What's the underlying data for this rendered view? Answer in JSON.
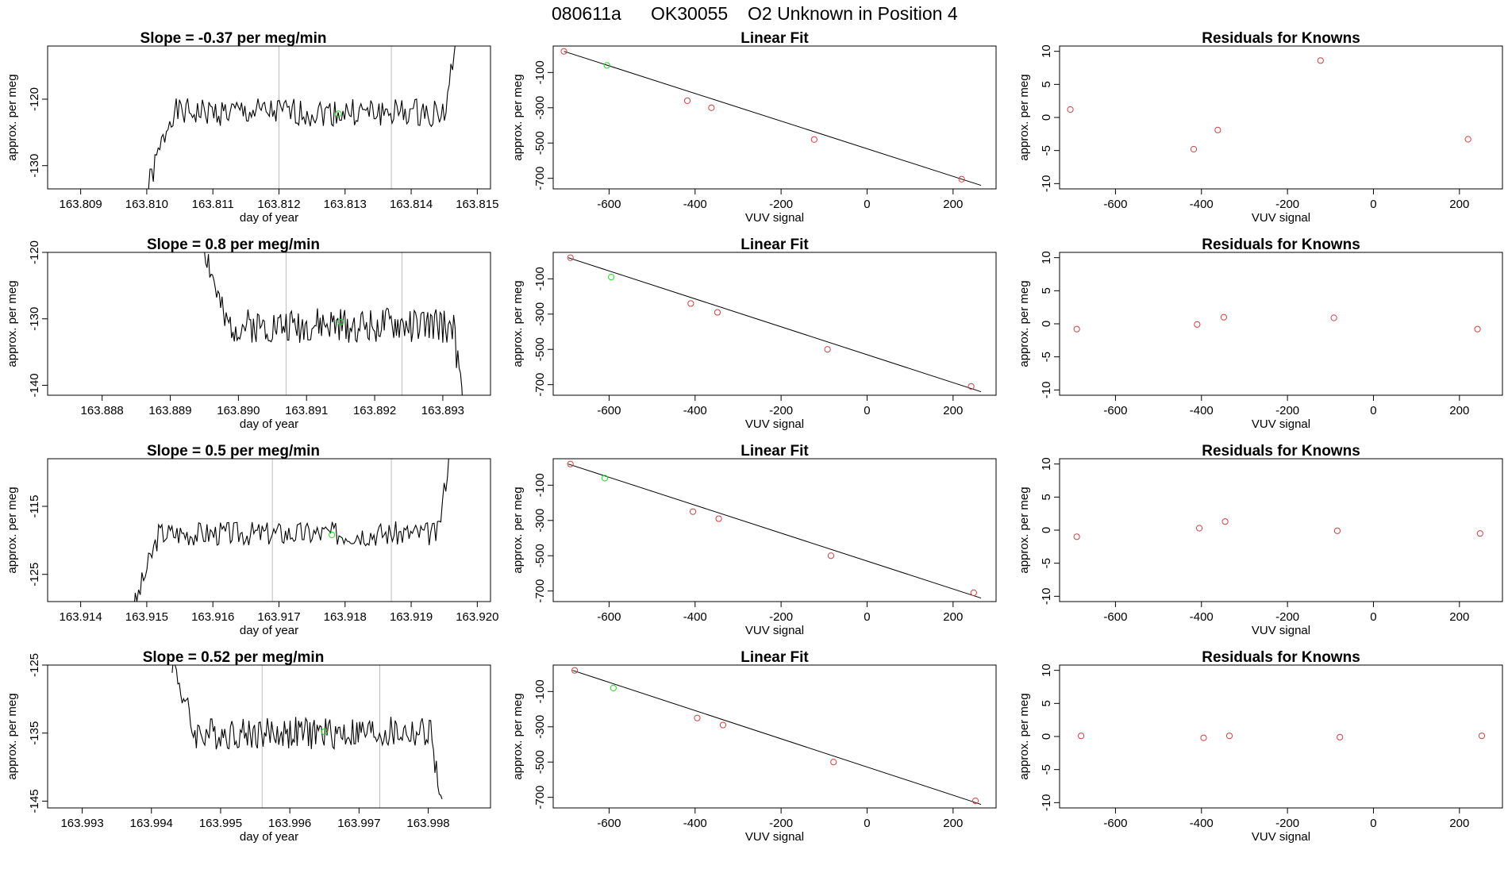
{
  "chart_data": {
    "type": "multi-panel",
    "title": {
      "run": "080611a",
      "tank": "OK30055",
      "description": "O2 Unknown in Position  4"
    },
    "colors": {
      "known": "#d04040",
      "unknown": "#22dd22",
      "trace": "#000000",
      "vline": "#bdbdbd"
    },
    "rows": [
      {
        "timeseries": {
          "title": "Slope =  -0.37  per meg/min",
          "xlabel": "day of year",
          "ylabel": "approx. per meg",
          "xlim": [
            163.8085,
            163.8152
          ],
          "ylim": [
            -133.5,
            -112
          ],
          "xticks": [
            "163.809",
            "163.810",
            "163.811",
            "163.812",
            "163.813",
            "163.814",
            "163.815"
          ],
          "yticks": [
            "-130",
            "-120"
          ],
          "vlines": [
            163.812,
            163.8137
          ],
          "unknown_point": [
            163.8129,
            -122.2
          ],
          "trace_range": [
            163.81,
            163.8147
          ],
          "trace_start": -134,
          "trace_level": -122,
          "trace_end": -110,
          "noise": 2.1,
          "seed": 1
        },
        "fit": {
          "title": "Linear Fit",
          "xlabel": "VUV signal",
          "ylabel": "approx. per meg",
          "xlim": [
            -730,
            300
          ],
          "ylim": [
            -760,
            50
          ],
          "xticks": [
            "-600",
            "-400",
            "-200",
            "0",
            "200"
          ],
          "yticks": [
            "-100",
            "-300",
            "-500",
            "-700"
          ],
          "line": [
            [
              -705,
              20
            ],
            [
              265,
              -740
            ]
          ],
          "knowns": [
            [
              -705,
              20
            ],
            [
              -418,
              -260
            ],
            [
              -362,
              -300
            ],
            [
              -123,
              -480
            ],
            [
              220,
              -705
            ]
          ],
          "unknown": [
            -605,
            -60
          ]
        },
        "residuals": {
          "title": "Residuals for Knowns",
          "xlabel": "VUV signal",
          "ylabel": "approx. per meg",
          "xlim": [
            -730,
            300
          ],
          "ylim": [
            -10.8,
            10.8
          ],
          "xticks": [
            "-600",
            "-400",
            "-200",
            "0",
            "200"
          ],
          "yticks": [
            "-10",
            "-5",
            "0",
            "5",
            "10"
          ],
          "points": [
            [
              -705,
              1.2
            ],
            [
              -418,
              -4.8
            ],
            [
              -362,
              -1.9
            ],
            [
              -123,
              8.6
            ],
            [
              220,
              -3.3
            ]
          ]
        }
      },
      {
        "timeseries": {
          "title": "Slope =  0.8  per meg/min",
          "xlabel": "day of year",
          "ylabel": "approx. per meg",
          "xlim": [
            163.8872,
            163.8937
          ],
          "ylim": [
            -141.5,
            -120
          ],
          "xticks": [
            "163.888",
            "163.889",
            "163.890",
            "163.891",
            "163.892",
            "163.893"
          ],
          "yticks": [
            "-140",
            "-130",
            "-120"
          ],
          "vlines": [
            163.8907,
            163.8924
          ],
          "unknown_point": [
            163.8915,
            -130.5
          ],
          "trace_range": [
            163.8895,
            163.8933
          ],
          "trace_start": -119,
          "trace_level": -131,
          "trace_end": -143,
          "noise": 2.6,
          "seed": 2
        },
        "fit": {
          "title": "Linear Fit",
          "xlabel": "VUV signal",
          "ylabel": "approx. per meg",
          "xlim": [
            -730,
            300
          ],
          "ylim": [
            -760,
            50
          ],
          "xticks": [
            "-600",
            "-400",
            "-200",
            "0",
            "200"
          ],
          "yticks": [
            "-100",
            "-300",
            "-500",
            "-700"
          ],
          "line": [
            [
              -695,
              20
            ],
            [
              265,
              -740
            ]
          ],
          "knowns": [
            [
              -690,
              20
            ],
            [
              -410,
              -240
            ],
            [
              -348,
              -290
            ],
            [
              -92,
              -500
            ],
            [
              242,
              -710
            ]
          ],
          "unknown": [
            -595,
            -90
          ]
        },
        "residuals": {
          "title": "Residuals for Knowns",
          "xlabel": "VUV signal",
          "ylabel": "approx. per meg",
          "xlim": [
            -730,
            300
          ],
          "ylim": [
            -10.8,
            10.8
          ],
          "xticks": [
            "-600",
            "-400",
            "-200",
            "0",
            "200"
          ],
          "yticks": [
            "-10",
            "-5",
            "0",
            "5",
            "10"
          ],
          "points": [
            [
              -690,
              -0.8
            ],
            [
              -410,
              -0.1
            ],
            [
              -348,
              1.0
            ],
            [
              -92,
              0.9
            ],
            [
              242,
              -0.8
            ]
          ]
        }
      },
      {
        "timeseries": {
          "title": "Slope =  0.5  per meg/min",
          "xlabel": "day of year",
          "ylabel": "approx. per meg",
          "xlim": [
            163.9135,
            163.9202
          ],
          "ylim": [
            -129,
            -108
          ],
          "xticks": [
            "163.914",
            "163.915",
            "163.916",
            "163.917",
            "163.918",
            "163.919",
            "163.920"
          ],
          "yticks": [
            "-125",
            "-115"
          ],
          "vlines": [
            163.9169,
            163.9187
          ],
          "unknown_point": [
            163.9178,
            -119.2
          ],
          "trace_range": [
            163.9148,
            163.9196
          ],
          "trace_start": -130,
          "trace_level": -119,
          "trace_end": -106,
          "noise": 1.8,
          "seed": 3
        },
        "fit": {
          "title": "Linear Fit",
          "xlabel": "VUV signal",
          "ylabel": "approx. per meg",
          "xlim": [
            -730,
            300
          ],
          "ylim": [
            -760,
            50
          ],
          "xticks": [
            "-600",
            "-400",
            "-200",
            "0",
            "200"
          ],
          "yticks": [
            "-100",
            "-300",
            "-500",
            "-700"
          ],
          "line": [
            [
              -695,
              20
            ],
            [
              265,
              -740
            ]
          ],
          "knowns": [
            [
              -690,
              20
            ],
            [
              -405,
              -250
            ],
            [
              -345,
              -290
            ],
            [
              -84,
              -500
            ],
            [
              248,
              -710
            ]
          ],
          "unknown": [
            -610,
            -60
          ]
        },
        "residuals": {
          "title": "Residuals for Knowns",
          "xlabel": "VUV signal",
          "ylabel": "approx. per meg",
          "xlim": [
            -730,
            300
          ],
          "ylim": [
            -10.8,
            10.8
          ],
          "xticks": [
            "-600",
            "-400",
            "-200",
            "0",
            "200"
          ],
          "yticks": [
            "-10",
            "-5",
            "0",
            "5",
            "10"
          ],
          "points": [
            [
              -690,
              -1.0
            ],
            [
              -405,
              0.3
            ],
            [
              -345,
              1.3
            ],
            [
              -84,
              -0.1
            ],
            [
              248,
              -0.5
            ]
          ]
        }
      },
      {
        "timeseries": {
          "title": "Slope =  0.52  per meg/min",
          "xlabel": "day of year",
          "ylabel": "approx. per meg",
          "xlim": [
            163.9925,
            163.9989
          ],
          "ylim": [
            -146,
            -125
          ],
          "xticks": [
            "163.993",
            "163.994",
            "163.995",
            "163.996",
            "163.997",
            "163.998"
          ],
          "yticks": [
            "-145",
            "-135",
            "-125"
          ],
          "vlines": [
            163.9956,
            163.9973
          ],
          "unknown_point": [
            163.9965,
            -134.8
          ],
          "trace_range": [
            163.9943,
            163.9982
          ],
          "trace_start": -124,
          "trace_level": -135,
          "trace_end": -147,
          "noise": 2.4,
          "seed": 4
        },
        "fit": {
          "title": "Linear Fit",
          "xlabel": "VUV signal",
          "ylabel": "approx. per meg",
          "xlim": [
            -730,
            300
          ],
          "ylim": [
            -760,
            50
          ],
          "xticks": [
            "-600",
            "-400",
            "-200",
            "0",
            "200"
          ],
          "yticks": [
            "-100",
            "-300",
            "-500",
            "-700"
          ],
          "line": [
            [
              -685,
              20
            ],
            [
              265,
              -740
            ]
          ],
          "knowns": [
            [
              -680,
              20
            ],
            [
              -395,
              -250
            ],
            [
              -335,
              -290
            ],
            [
              -78,
              -500
            ],
            [
              252,
              -720
            ]
          ],
          "unknown": [
            -590,
            -80
          ]
        },
        "residuals": {
          "title": "Residuals for Knowns",
          "xlabel": "VUV signal",
          "ylabel": "approx. per meg",
          "xlim": [
            -730,
            300
          ],
          "ylim": [
            -10.8,
            10.8
          ],
          "xticks": [
            "-600",
            "-400",
            "-200",
            "0",
            "200"
          ],
          "yticks": [
            "-10",
            "-5",
            "0",
            "5",
            "10"
          ],
          "points": [
            [
              -680,
              0.1
            ],
            [
              -395,
              -0.2
            ],
            [
              -335,
              0.1
            ],
            [
              -78,
              -0.1
            ],
            [
              252,
              0.1
            ]
          ]
        }
      }
    ]
  }
}
